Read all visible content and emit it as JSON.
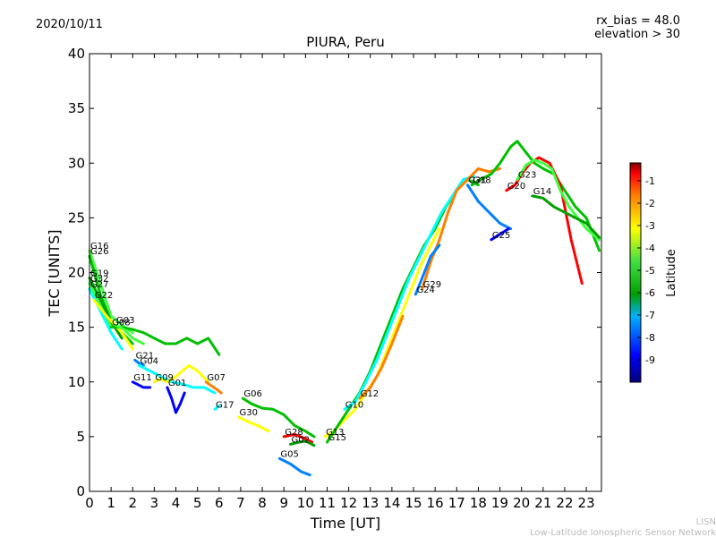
{
  "header": {
    "date": "2020/10/11",
    "rx_bias": "rx_bias = 48.0",
    "elevation": "elevation > 30"
  },
  "footer": {
    "line1": "LISN",
    "line2": "Low-Latitude Ionospheric Sensor Network"
  },
  "colorbar": {
    "label": "Latitude",
    "range": [
      -10,
      -0.2
    ],
    "ticks": [
      "-1",
      "-2",
      "-3",
      "-4",
      "-5",
      "-6",
      "-7",
      "-8",
      "-9"
    ],
    "colors": [
      "#00007f",
      "#0000ff",
      "#0080ff",
      "#00ffff",
      "#00a000",
      "#00c000",
      "#40ff40",
      "#ffff00",
      "#ff8000",
      "#ff0000",
      "#800000"
    ]
  },
  "chart_data": {
    "type": "line",
    "title": "PIURA, Peru",
    "xlabel": "Time [UT]",
    "ylabel": "TEC [UNITS]",
    "xlim": [
      0,
      23.7
    ],
    "ylim": [
      0,
      40
    ],
    "xticks": [
      "0",
      "1",
      "2",
      "3",
      "4",
      "5",
      "6",
      "7",
      "8",
      "9",
      "10",
      "11",
      "12",
      "13",
      "14",
      "15",
      "16",
      "17",
      "18",
      "19",
      "20",
      "21",
      "22",
      "23"
    ],
    "yticks": [
      "0",
      "5",
      "10",
      "15",
      "20",
      "25",
      "30",
      "35",
      "40"
    ],
    "series": [
      {
        "name": "G16",
        "lat": -4.5,
        "points": [
          [
            0,
            22
          ],
          [
            0.5,
            19
          ],
          [
            1,
            16
          ],
          [
            1.5,
            15.2
          ],
          [
            2,
            14.5
          ]
        ]
      },
      {
        "name": "G26",
        "lat": -5.5,
        "points": [
          [
            0,
            21.5
          ],
          [
            0.5,
            18
          ],
          [
            1,
            15.5
          ],
          [
            1.5,
            14.5
          ],
          [
            2,
            13.5
          ]
        ]
      },
      {
        "name": "G19",
        "lat": -6.5,
        "points": [
          [
            0,
            19.5
          ],
          [
            0.5,
            17.5
          ],
          [
            1,
            15.5
          ],
          [
            1.5,
            14
          ]
        ]
      },
      {
        "name": "G32",
        "lat": -4.0,
        "points": [
          [
            0,
            19
          ],
          [
            0.5,
            17
          ],
          [
            1,
            15
          ]
        ]
      },
      {
        "name": "G27",
        "lat": -7.5,
        "points": [
          [
            0,
            18.5
          ],
          [
            0.5,
            16.5
          ],
          [
            1,
            14.5
          ],
          [
            1.5,
            13
          ]
        ]
      },
      {
        "name": "G22",
        "lat": -3.5,
        "points": [
          [
            0.2,
            17.5
          ],
          [
            0.8,
            16
          ],
          [
            1.5,
            14.5
          ],
          [
            2,
            13
          ]
        ]
      },
      {
        "name": "G08",
        "lat": -5.0,
        "points": [
          [
            1,
            15
          ],
          [
            1.5,
            15
          ],
          [
            2,
            14.8
          ],
          [
            2.5,
            14.5
          ],
          [
            3,
            14
          ],
          [
            3.5,
            13.5
          ],
          [
            4,
            13.5
          ],
          [
            4.5,
            14
          ],
          [
            5,
            13.5
          ],
          [
            5.5,
            14
          ],
          [
            6,
            12.5
          ]
        ]
      },
      {
        "name": "G03",
        "lat": -4.2,
        "points": [
          [
            1.2,
            15.2
          ],
          [
            1.6,
            14.8
          ],
          [
            2,
            14
          ],
          [
            2.5,
            13.5
          ]
        ]
      },
      {
        "name": "G21",
        "lat": -8.5,
        "points": [
          [
            2.1,
            12
          ],
          [
            2.3,
            11.7
          ],
          [
            2.5,
            11.5
          ]
        ]
      },
      {
        "name": "G04",
        "lat": -7.0,
        "points": [
          [
            2.3,
            11.5
          ],
          [
            2.8,
            11
          ],
          [
            3.3,
            10.5
          ],
          [
            3.8,
            10
          ],
          [
            4.3,
            9.8
          ],
          [
            4.8,
            9.5
          ],
          [
            5.3,
            9.5
          ],
          [
            5.8,
            9
          ]
        ]
      },
      {
        "name": "G11",
        "lat": -9.0,
        "points": [
          [
            2,
            10
          ],
          [
            2.2,
            9.8
          ],
          [
            2.5,
            9.5
          ],
          [
            2.8,
            9.5
          ]
        ]
      },
      {
        "name": "G09",
        "lat": -3.0,
        "points": [
          [
            3,
            10
          ],
          [
            3.3,
            10.3
          ],
          [
            3.6,
            10
          ],
          [
            4,
            10.5
          ],
          [
            4.3,
            11
          ],
          [
            4.6,
            11.5
          ],
          [
            5,
            11
          ],
          [
            5.5,
            10
          ]
        ]
      },
      {
        "name": "G01",
        "lat": -9.5,
        "points": [
          [
            3.6,
            9.5
          ],
          [
            3.8,
            8.5
          ],
          [
            4,
            7.2
          ],
          [
            4.2,
            8
          ],
          [
            4.4,
            9
          ]
        ]
      },
      {
        "name": "G07",
        "lat": -2.5,
        "points": [
          [
            5.4,
            10
          ],
          [
            5.6,
            9.7
          ],
          [
            5.9,
            9.3
          ],
          [
            6.1,
            9
          ]
        ]
      },
      {
        "name": "G17",
        "lat": -6.8,
        "points": [
          [
            5.8,
            7.5
          ],
          [
            6,
            7.8
          ]
        ]
      },
      {
        "name": "G06",
        "lat": -5.0,
        "points": [
          [
            7.1,
            8.5
          ],
          [
            7.5,
            8
          ],
          [
            8,
            7.6
          ],
          [
            8.5,
            7.5
          ],
          [
            9,
            7
          ],
          [
            9.5,
            6
          ],
          [
            10,
            5.5
          ],
          [
            10.4,
            5
          ]
        ]
      },
      {
        "name": "G30",
        "lat": -3.5,
        "points": [
          [
            6.9,
            6.8
          ],
          [
            7.3,
            6.4
          ],
          [
            7.8,
            6
          ],
          [
            8.3,
            5.5
          ]
        ]
      },
      {
        "name": "G28",
        "lat": -1.5,
        "points": [
          [
            9,
            5
          ],
          [
            9.5,
            5.2
          ],
          [
            10,
            4.8
          ],
          [
            10.3,
            4.5
          ]
        ]
      },
      {
        "name": "G02",
        "lat": -6.0,
        "points": [
          [
            9.3,
            4.3
          ],
          [
            9.7,
            4.5
          ],
          [
            10,
            4.6
          ],
          [
            10.4,
            4.2
          ]
        ]
      },
      {
        "name": "G05",
        "lat": -8.0,
        "points": [
          [
            8.8,
            3
          ],
          [
            9.3,
            2.5
          ],
          [
            9.8,
            1.8
          ],
          [
            10.2,
            1.5
          ]
        ]
      },
      {
        "name": "G13",
        "lat": -3.0,
        "points": [
          [
            10.9,
            5
          ],
          [
            11.3,
            5.5
          ],
          [
            11.8,
            6.5
          ],
          [
            12.3,
            7.5
          ],
          [
            12.8,
            9
          ],
          [
            13.3,
            10.5
          ],
          [
            13.8,
            13
          ],
          [
            14.3,
            15.5
          ],
          [
            14.8,
            18
          ],
          [
            15.3,
            20.5
          ],
          [
            15.8,
            22.5
          ],
          [
            16.2,
            24
          ]
        ]
      },
      {
        "name": "G12",
        "lat": -2.5,
        "points": [
          [
            12.5,
            8.5
          ],
          [
            13,
            9.5
          ],
          [
            13.5,
            11.2
          ],
          [
            14,
            13.5
          ],
          [
            14.5,
            16
          ]
        ]
      },
      {
        "name": "G15",
        "lat": -5.5,
        "points": [
          [
            11,
            4.5
          ],
          [
            11.5,
            6
          ],
          [
            12,
            7.5
          ],
          [
            12.5,
            9
          ],
          [
            13,
            11
          ],
          [
            13.5,
            13.5
          ],
          [
            14,
            16
          ],
          [
            14.5,
            18.5
          ],
          [
            15,
            20.5
          ],
          [
            15.5,
            22.5
          ],
          [
            16,
            24
          ],
          [
            16.5,
            26
          ],
          [
            17,
            27.5
          ],
          [
            17.5,
            28.5
          ],
          [
            18,
            28
          ]
        ]
      },
      {
        "name": "G10",
        "lat": -7.0,
        "points": [
          [
            11.8,
            7.5
          ],
          [
            12.3,
            8.2
          ],
          [
            12.8,
            10
          ],
          [
            13.3,
            12
          ],
          [
            13.8,
            14.5
          ],
          [
            14.3,
            17
          ],
          [
            14.8,
            19.5
          ],
          [
            15.3,
            21.5
          ],
          [
            15.8,
            23.5
          ],
          [
            16.3,
            25.5
          ],
          [
            16.8,
            27
          ],
          [
            17.3,
            28.5
          ],
          [
            17.8,
            28.8
          ]
        ]
      },
      {
        "name": "G29",
        "lat": -2.0,
        "points": [
          [
            15.4,
            18.5
          ],
          [
            15.8,
            21
          ],
          [
            16.2,
            23
          ],
          [
            16.6,
            25.5
          ],
          [
            17,
            27.5
          ],
          [
            17.5,
            28.5
          ],
          [
            18,
            29.5
          ],
          [
            18.5,
            29.2
          ],
          [
            19,
            29.5
          ]
        ]
      },
      {
        "name": "G24",
        "lat": -8.5,
        "points": [
          [
            15.1,
            18
          ],
          [
            15.5,
            20
          ],
          [
            15.8,
            21.5
          ],
          [
            16.2,
            22.5
          ]
        ]
      },
      {
        "name": "G18",
        "lat": -4.8,
        "points": [
          [
            17.7,
            28
          ],
          [
            18.1,
            28.5
          ],
          [
            18.6,
            29
          ],
          [
            19,
            30
          ],
          [
            19.5,
            31.5
          ],
          [
            19.8,
            32
          ],
          [
            20.2,
            31
          ],
          [
            20.6,
            30
          ],
          [
            21,
            29.5
          ],
          [
            21.5,
            29
          ],
          [
            22,
            27.5
          ],
          [
            22.5,
            26
          ],
          [
            23,
            25
          ],
          [
            23.6,
            22
          ]
        ]
      },
      {
        "name": "G31",
        "lat": -7.8,
        "points": [
          [
            17.5,
            28
          ],
          [
            18,
            26.5
          ],
          [
            18.5,
            25.5
          ],
          [
            19,
            24.5
          ],
          [
            19.5,
            24
          ]
        ]
      },
      {
        "name": "G25",
        "lat": -9.2,
        "points": [
          [
            18.6,
            23
          ],
          [
            19,
            23.5
          ],
          [
            19.4,
            24
          ]
        ]
      },
      {
        "name": "G20",
        "lat": -1.5,
        "points": [
          [
            19.3,
            27.5
          ],
          [
            19.7,
            28
          ],
          [
            20,
            29
          ],
          [
            20.4,
            30
          ],
          [
            20.8,
            30.5
          ],
          [
            21.3,
            30
          ],
          [
            21.8,
            28
          ],
          [
            22.3,
            23
          ],
          [
            22.8,
            19
          ]
        ]
      },
      {
        "name": "G23",
        "lat": -3.8,
        "points": [
          [
            19.8,
            28.5
          ],
          [
            20.2,
            29.8
          ],
          [
            20.6,
            30.3
          ],
          [
            21,
            30
          ],
          [
            21.4,
            29.5
          ],
          [
            21.8,
            27.5
          ],
          [
            22.2,
            26
          ],
          [
            22.6,
            25
          ],
          [
            23,
            24
          ],
          [
            23.6,
            23
          ]
        ]
      },
      {
        "name": "G14",
        "lat": -6.2,
        "points": [
          [
            20.5,
            27
          ],
          [
            21,
            26.8
          ],
          [
            21.5,
            26
          ],
          [
            22,
            25.5
          ],
          [
            22.5,
            25
          ],
          [
            23,
            24.5
          ],
          [
            23.6,
            23.2
          ]
        ]
      }
    ]
  }
}
